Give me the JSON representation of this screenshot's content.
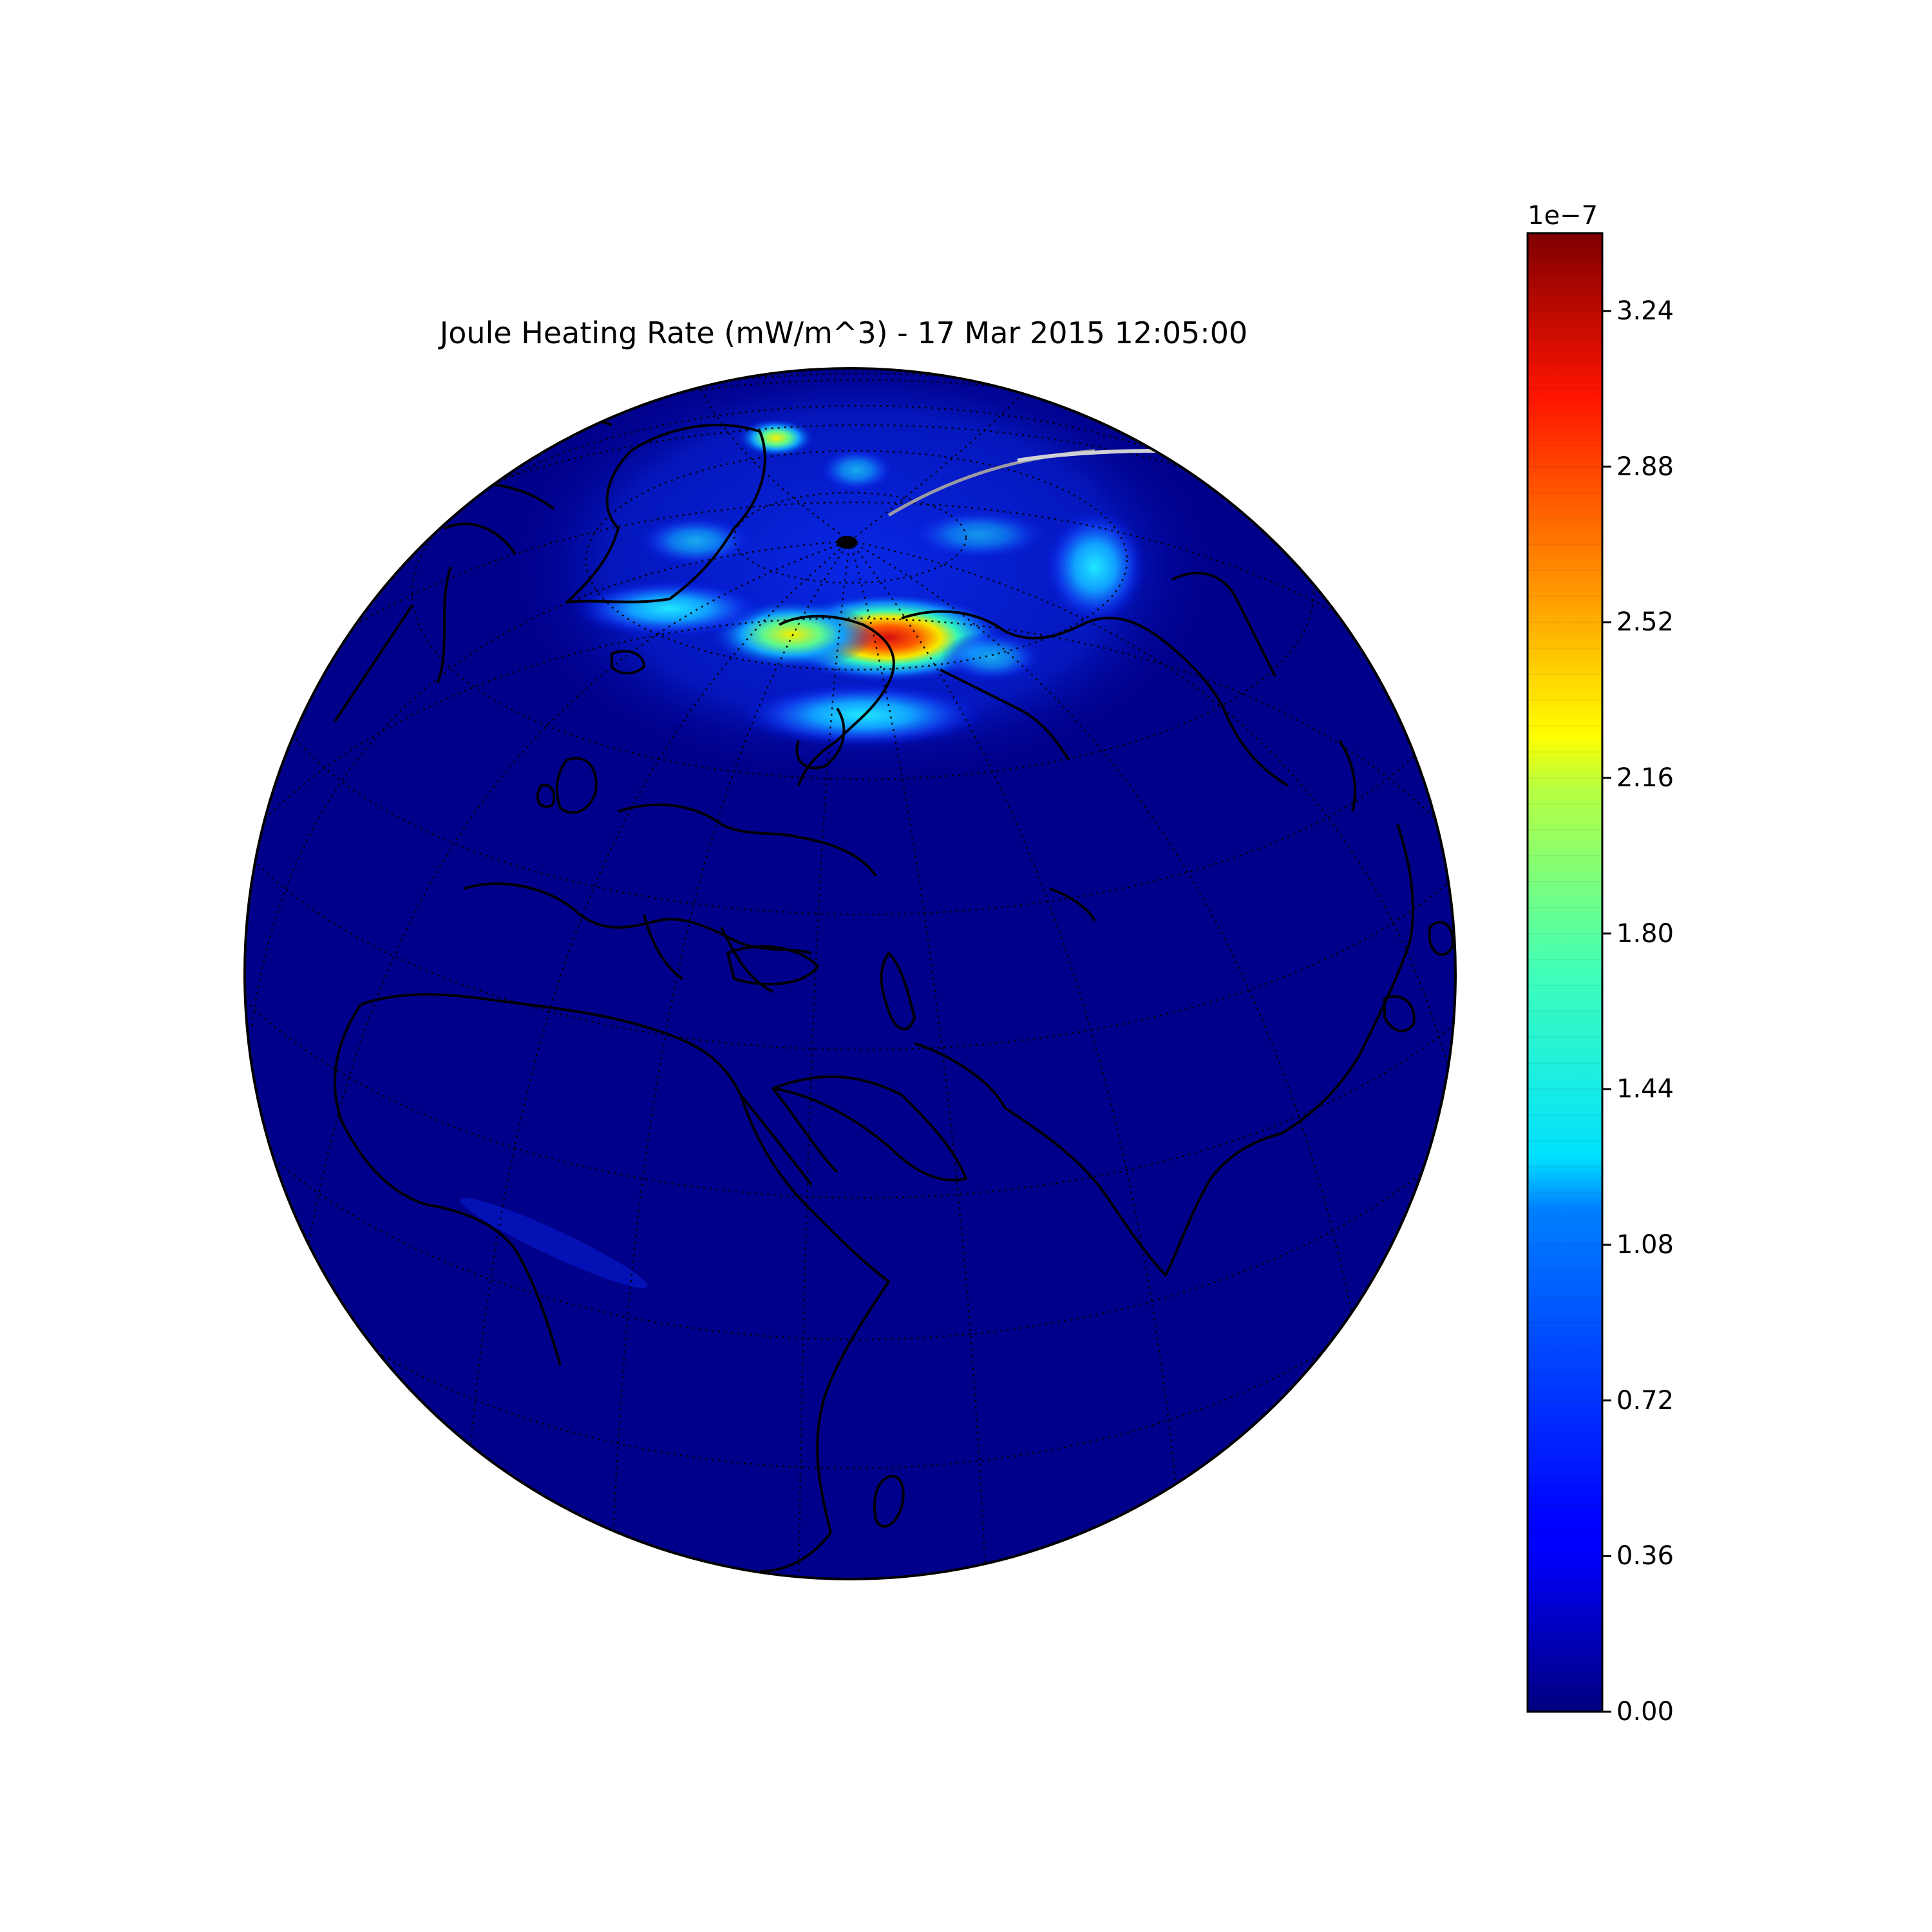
{
  "title": "Joule Heating Rate (mW/m^3) - 17 Mar 2015 12:05:00",
  "colorbar": {
    "exponent_label": "1e−7",
    "ticks": [
      "0.00",
      "0.36",
      "0.72",
      "1.08",
      "1.44",
      "1.80",
      "2.16",
      "2.52",
      "2.88",
      "3.24"
    ],
    "tick_values": [
      0.0,
      0.36,
      0.72,
      1.08,
      1.44,
      1.8,
      2.16,
      2.52,
      2.88,
      3.24
    ],
    "range": [
      0.0,
      3.42
    ],
    "colormap": "jet",
    "levels": 57
  },
  "map": {
    "projection": "orthographic",
    "center": "Europe / Africa / Asia",
    "coastlines": true,
    "graticule": "dotted",
    "background_color": "#00008b",
    "hotspot_color": "#d01010"
  }
}
